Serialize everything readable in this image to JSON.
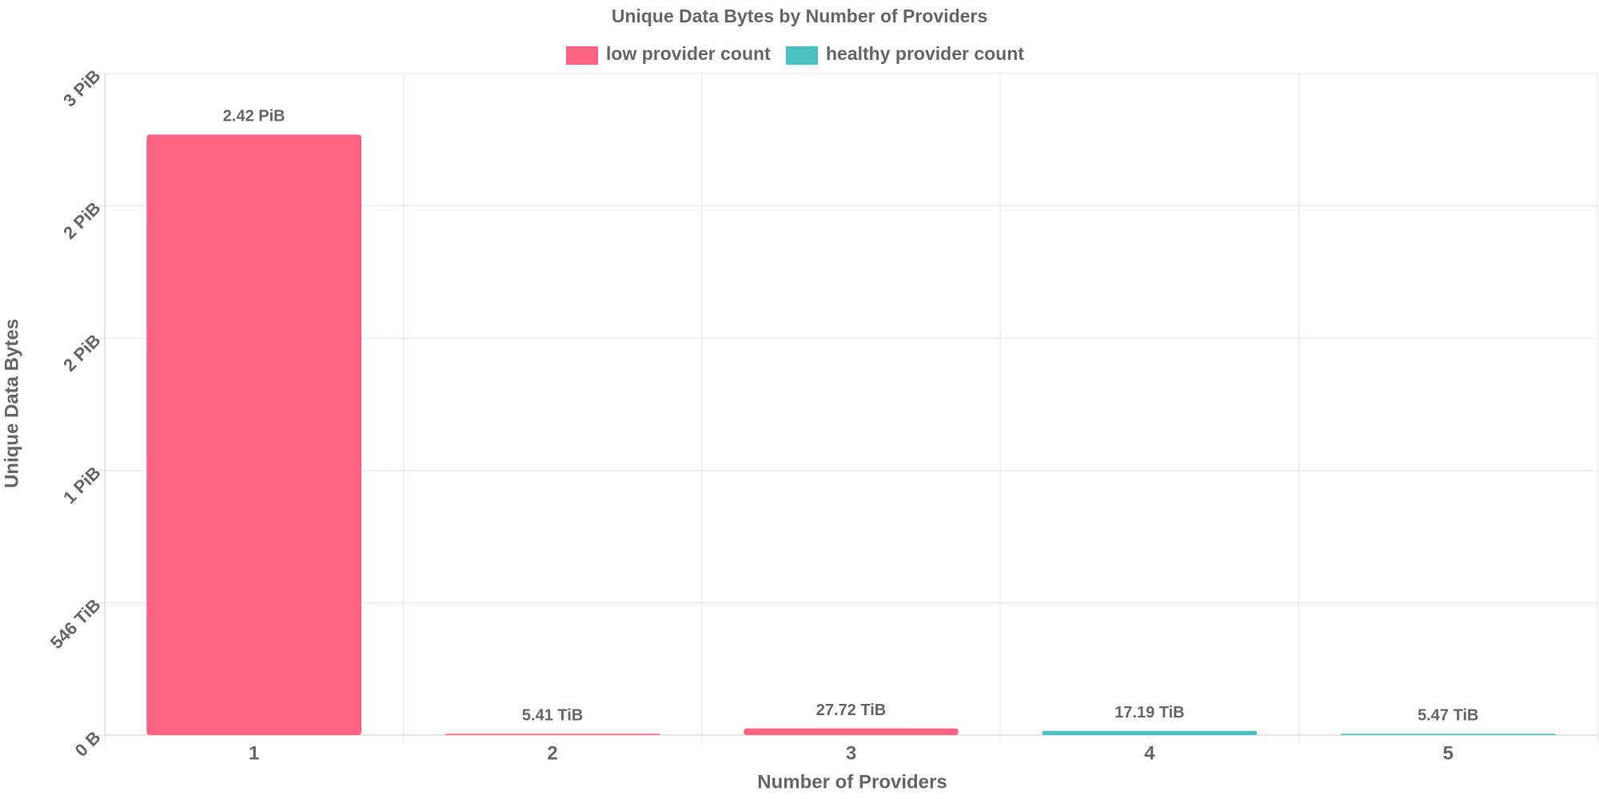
{
  "chart_data": {
    "type": "bar",
    "title": "Unique Data Bytes by Number of Providers",
    "x_label": "Number of Providers",
    "y_label": "Unique Data Bytes",
    "categories": [
      "1",
      "2",
      "3",
      "4",
      "5"
    ],
    "series": [
      {
        "name": "low provider count",
        "color": "#ff6384",
        "values": [
          2478.08,
          5.41,
          27.72,
          null,
          null
        ],
        "value_labels": [
          "2.42 PiB",
          "5.41 TiB",
          "27.72 TiB",
          null,
          null
        ]
      },
      {
        "name": "healthy provider count",
        "color": "#4bc0c0",
        "values": [
          null,
          null,
          null,
          17.19,
          5.47
        ],
        "value_labels": [
          null,
          null,
          null,
          "17.19 TiB",
          "5.47 TiB"
        ]
      }
    ],
    "ylim": [
      0,
      2730
    ],
    "yticks": [
      {
        "value": 0,
        "label": "0 B"
      },
      {
        "value": 546,
        "label": "546 TiB"
      },
      {
        "value": 1092,
        "label": "1 PiB"
      },
      {
        "value": 1638,
        "label": "2 PiB"
      },
      {
        "value": 2184,
        "label": "2 PiB"
      },
      {
        "value": 2730,
        "label": "3 PiB"
      }
    ],
    "grid": true,
    "legend": "top"
  }
}
